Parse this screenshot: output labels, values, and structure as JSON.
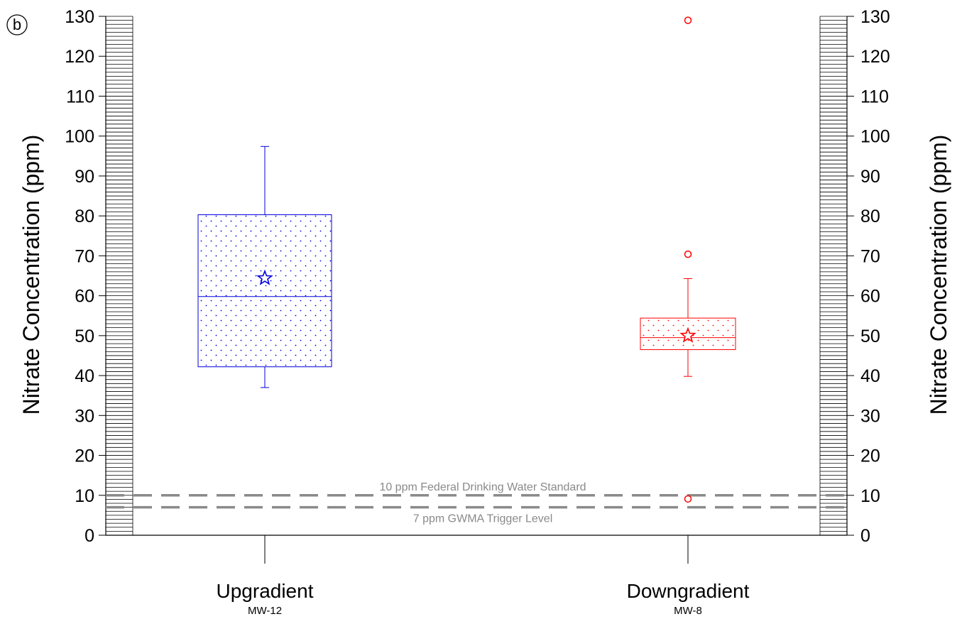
{
  "panel_label": "b",
  "colors": {
    "axis": "#000000",
    "reference": "#8a8a8a",
    "upgradient": "#0000dd",
    "downgradient": "#ff0000"
  },
  "chart_data": {
    "type": "box",
    "ylabel": "Nitrate Concentration (ppm)",
    "ylabel_right": "Nitrate Concentration (ppm)",
    "ylim": [
      0,
      130
    ],
    "yticks": [
      0,
      10,
      20,
      30,
      40,
      50,
      60,
      70,
      80,
      90,
      100,
      110,
      120,
      130
    ],
    "grid": false,
    "categories": [
      {
        "name": "Upgradient",
        "sublabel": "MW-12",
        "whisker_low": 37,
        "q1": 42.2,
        "median": 59.8,
        "q3": 80.3,
        "whisker_high": 97.4,
        "mean": 64.4,
        "outliers": [],
        "color": "#0000dd"
      },
      {
        "name": "Downgradient",
        "sublabel": "MW-8",
        "whisker_low": 39.8,
        "q1": 46.5,
        "median": 49.5,
        "q3": 54.4,
        "whisker_high": 64.3,
        "mean": 50,
        "outliers": [
          9.1,
          70.4,
          129
        ],
        "color": "#ff0000"
      }
    ],
    "reference_lines": [
      {
        "value": 10,
        "label": "10 ppm Federal Drinking Water Standard",
        "label_position": "above"
      },
      {
        "value": 7,
        "label": "7 ppm GWMA Trigger Level",
        "label_position": "below"
      }
    ]
  }
}
